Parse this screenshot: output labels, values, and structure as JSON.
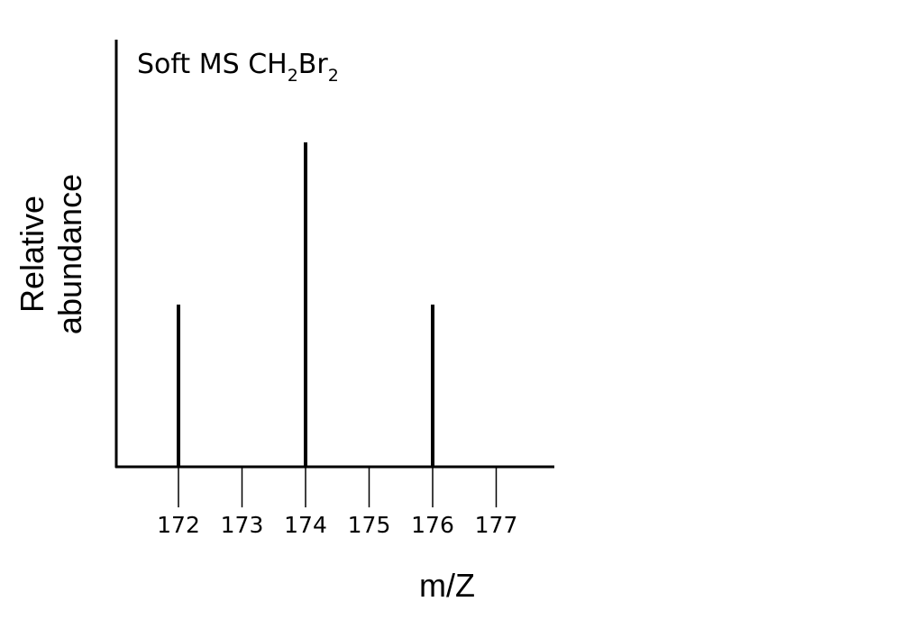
{
  "chart_data": {
    "type": "bar",
    "title": {
      "main": "Soft MS CH",
      "sub1": "2",
      "mid": "Br",
      "sub2": "2"
    },
    "xlabel": "m/Z",
    "ylabel": [
      "Relative",
      "abundance"
    ],
    "categories": [
      "172",
      "173",
      "174",
      "175",
      "176",
      "177"
    ],
    "x": [
      172,
      173,
      174,
      175,
      176,
      177
    ],
    "values": [
      1,
      0,
      2,
      0,
      1,
      0
    ],
    "xlim": [
      171.1,
      177.6
    ],
    "ylim": [
      0,
      2.3
    ],
    "grid": false,
    "legend": "none",
    "colors": {
      "line": "#000000",
      "background": "#ffffff"
    }
  }
}
